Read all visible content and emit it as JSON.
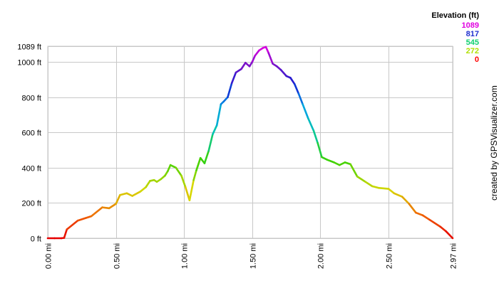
{
  "chart_data": {
    "type": "line",
    "x_unit": "mi",
    "y_unit": "ft",
    "xlim": [
      0,
      2.97
    ],
    "ylim": [
      0,
      1089
    ],
    "x_ticks": [
      {
        "value": 0.0,
        "label": "0.00 mi"
      },
      {
        "value": 0.5,
        "label": "0.50 mi"
      },
      {
        "value": 1.0,
        "label": "1.00 mi"
      },
      {
        "value": 1.5,
        "label": "1.50 mi"
      },
      {
        "value": 2.0,
        "label": "2.00 mi"
      },
      {
        "value": 2.5,
        "label": "2.50 mi"
      },
      {
        "value": 2.97,
        "label": "2.97 mi"
      }
    ],
    "y_ticks": [
      {
        "value": 0,
        "label": "0 ft"
      },
      {
        "value": 200,
        "label": "200 ft"
      },
      {
        "value": 400,
        "label": "400 ft"
      },
      {
        "value": 600,
        "label": "600 ft"
      },
      {
        "value": 800,
        "label": "800 ft"
      },
      {
        "value": 1000,
        "label": "1000 ft"
      },
      {
        "value": 1089,
        "label": "1089 ft"
      }
    ],
    "grid": true,
    "legend": {
      "position": "top-right",
      "title": "Elevation (ft)",
      "entries": [
        {
          "label": "1089",
          "color": "#e000e0"
        },
        {
          "label": "817",
          "color": "#2030d0"
        },
        {
          "label": "545",
          "color": "#10d070"
        },
        {
          "label": "272",
          "color": "#b0e000"
        },
        {
          "label": "0",
          "color": "#ff0000"
        }
      ]
    },
    "credit": "created by GPSVisualizer.com",
    "series": [
      {
        "x": [
          0.0,
          0.05,
          0.1,
          0.12,
          0.14,
          0.22,
          0.28,
          0.32,
          0.4,
          0.45,
          0.5,
          0.53,
          0.58,
          0.62,
          0.68,
          0.72,
          0.75,
          0.78,
          0.8,
          0.83,
          0.86,
          0.88,
          0.9,
          0.94,
          0.98,
          1.01,
          1.04,
          1.07,
          1.09,
          1.12,
          1.15,
          1.18,
          1.21,
          1.24,
          1.27,
          1.29,
          1.32,
          1.35,
          1.38,
          1.42,
          1.45,
          1.48,
          1.5,
          1.52,
          1.55,
          1.58,
          1.6,
          1.62,
          1.65,
          1.68,
          1.71,
          1.75,
          1.78,
          1.81,
          1.84,
          1.87,
          1.91,
          1.95,
          1.98,
          2.01,
          2.05,
          2.1,
          2.14,
          2.18,
          2.22,
          2.27,
          2.33,
          2.38,
          2.43,
          2.5,
          2.54,
          2.6,
          2.65,
          2.7,
          2.75,
          2.8,
          2.88,
          2.92,
          2.97
        ],
        "y": [
          0,
          0,
          0,
          2,
          50,
          100,
          115,
          125,
          175,
          170,
          195,
          245,
          255,
          240,
          265,
          290,
          325,
          330,
          320,
          335,
          355,
          380,
          415,
          400,
          355,
          290,
          215,
          330,
          385,
          455,
          425,
          495,
          590,
          640,
          760,
          775,
          800,
          880,
          940,
          960,
          995,
          975,
          1000,
          1035,
          1065,
          1080,
          1085,
          1050,
          990,
          975,
          955,
          920,
          910,
          875,
          820,
          760,
          680,
          610,
          540,
          460,
          445,
          430,
          415,
          430,
          420,
          350,
          320,
          295,
          285,
          280,
          255,
          235,
          195,
          145,
          130,
          105,
          65,
          40,
          0
        ]
      }
    ]
  }
}
